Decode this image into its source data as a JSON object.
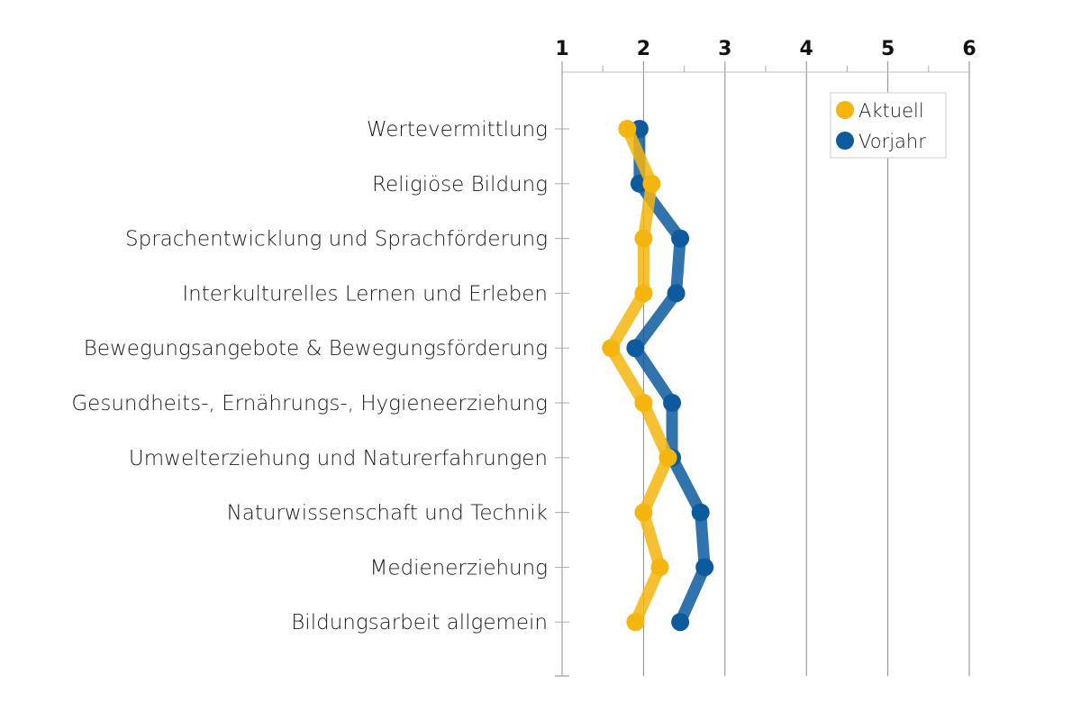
{
  "chart_data": {
    "type": "line",
    "orientation": "horizontal",
    "categories": [
      "Wertevermittlung",
      "Religiöse Bildung",
      "Sprachentwicklung und Sprachförderung",
      "Interkulturelles Lernen und Erleben",
      "Bewegungsangebote & Bewegungsförderung",
      "Gesundheits-, Ernährungs-, Hygieneerziehung",
      "Umwelterziehung und Naturerfahrungen",
      "Naturwissenschaft und Technik",
      "Medienerziehung",
      "Bildungsarbeit allgemein"
    ],
    "series": [
      {
        "name": "Aktuell",
        "color": "#f5b50f",
        "values": [
          1.8,
          2.1,
          2.0,
          2.0,
          1.6,
          2.0,
          2.3,
          2.0,
          2.2,
          1.9
        ]
      },
      {
        "name": "Vorjahr",
        "color": "#0d5b9e",
        "values": [
          1.95,
          1.95,
          2.45,
          2.4,
          1.9,
          2.35,
          2.35,
          2.7,
          2.75,
          2.45
        ]
      }
    ],
    "x_ticks": [
      "1",
      "2",
      "3",
      "4",
      "5",
      "6"
    ],
    "xlim": [
      1,
      6
    ],
    "x_axis_position": "top",
    "grid": true,
    "legend_position": "top-right"
  }
}
